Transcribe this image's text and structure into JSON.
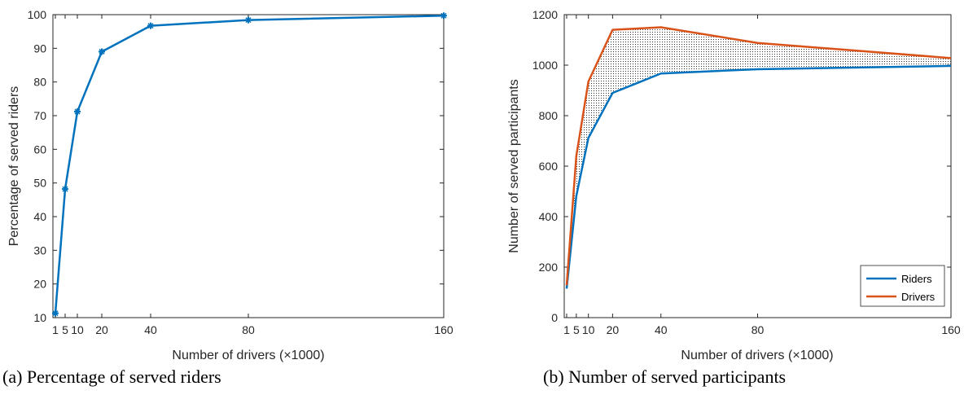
{
  "colors": {
    "riders": "#0072BD",
    "drivers": "#D95319",
    "axis": "#262626"
  },
  "chart_data": [
    {
      "type": "line",
      "caption": "(a)  Percentage of served riders",
      "xlabel": "Number of drivers (×1000)",
      "ylabel": "Percentage of served riders",
      "xlim": [
        0,
        160
      ],
      "ylim": [
        10,
        100
      ],
      "xticks": [
        1,
        5,
        10,
        20,
        40,
        80,
        160
      ],
      "yticks": [
        10,
        20,
        30,
        40,
        50,
        60,
        70,
        80,
        90,
        100
      ],
      "grid": false,
      "markers": true,
      "series": [
        {
          "x": [
            1,
            5,
            10,
            20,
            40,
            80,
            160
          ],
          "values": [
            11.3,
            48.2,
            71.2,
            89.0,
            96.7,
            98.4,
            99.7
          ]
        }
      ]
    },
    {
      "type": "line",
      "caption": "(b)  Number of served participants",
      "xlabel": "Number of drivers (×1000)",
      "ylabel": "Number of served participants",
      "xlim": [
        0,
        160
      ],
      "ylim": [
        0,
        1200
      ],
      "xticks": [
        1,
        5,
        10,
        20,
        40,
        80,
        160
      ],
      "yticks": [
        0,
        200,
        400,
        600,
        800,
        1000,
        1200
      ],
      "grid": false,
      "shaded_between_series": true,
      "legend_position": "bottom-right",
      "series": [
        {
          "name": "Riders",
          "x": [
            1,
            5,
            10,
            20,
            40,
            80,
            160
          ],
          "values": [
            115,
            482,
            712,
            890,
            967,
            984,
            997
          ]
        },
        {
          "name": "Drivers",
          "x": [
            1,
            5,
            10,
            20,
            40,
            80,
            160
          ],
          "values": [
            128,
            640,
            935,
            1140,
            1150,
            1088,
            1028
          ]
        }
      ]
    }
  ]
}
